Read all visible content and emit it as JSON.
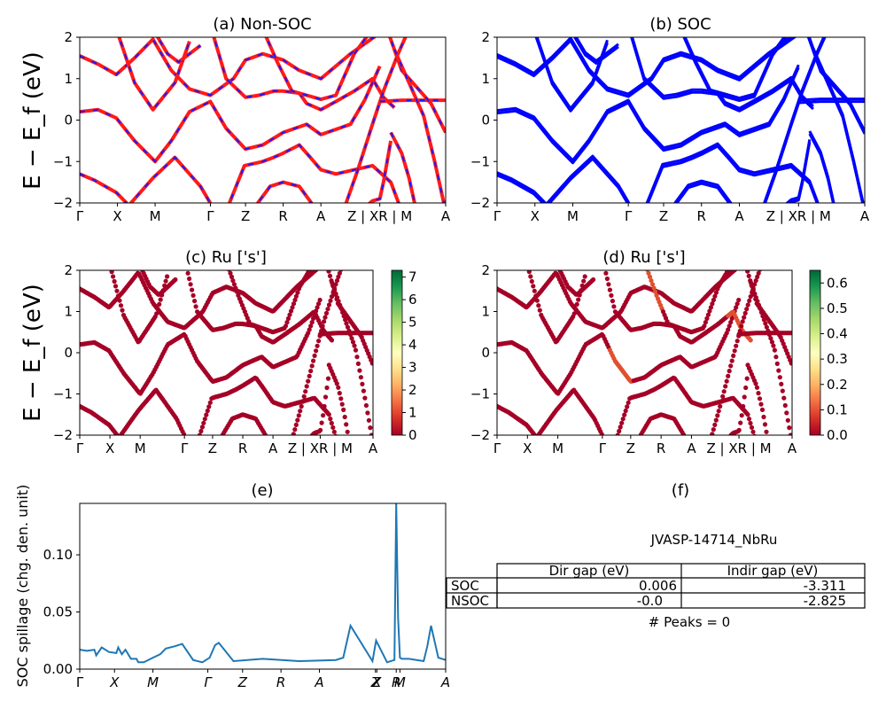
{
  "figure": {
    "ylabel_band": "E − E_f (eV)",
    "ylabel_spillage": "SOC spillage (chg. den. unit)"
  },
  "kpath_labels": [
    "Γ",
    "X",
    "M",
    "Γ",
    "Z",
    "R",
    "A",
    "Z | XR | M",
    "A"
  ],
  "kpath_labels_cd": [
    "Γ",
    "X",
    "M",
    "Γ",
    "Z",
    "R",
    "A",
    "Z | XR | M",
    "A"
  ],
  "kpath_labels_e": [
    "Γ",
    "X",
    "M",
    "Γ",
    "Z",
    "R",
    "A",
    "Z",
    "X",
    "R",
    "M",
    "A"
  ],
  "colors": {
    "nonsoc_red": "#ff1a1a",
    "nonsoc_blue": "#1a1aff",
    "soc_blue": "#0000ff",
    "spill_line": "#1f77b4"
  },
  "chart_data": [
    {
      "type": "line",
      "title": "(a) Non-SOC",
      "ylabel": "E − E_f (eV)",
      "ylim": [
        -2,
        2
      ],
      "yticks": [
        "2",
        "1",
        "0",
        "−1",
        "−2"
      ],
      "note": "bands: red solid with blue dashed overlay"
    },
    {
      "type": "line",
      "title": "(b) SOC",
      "ylim": [
        -2,
        2
      ],
      "yticks": [
        "2",
        "1",
        "0",
        "−1",
        "−2"
      ]
    },
    {
      "type": "scatter",
      "title": "(c)  Ru ['s']",
      "ylabel": "E − E_f (eV)",
      "ylim": [
        -2,
        2
      ],
      "yticks": [
        "2",
        "1",
        "0",
        "−1",
        "−2"
      ],
      "colorbar": {
        "min": 0,
        "max": 7.3,
        "ticks": [
          "7",
          "6",
          "5",
          "4",
          "3",
          "2",
          "1",
          "0"
        ],
        "colormap": "RdYlGn"
      }
    },
    {
      "type": "scatter",
      "title": "(d) Ru ['s']",
      "ylim": [
        -2,
        2
      ],
      "yticks": [
        "2",
        "1",
        "0",
        "−1",
        "−2"
      ],
      "colorbar": {
        "min": 0,
        "max": 0.65,
        "ticks": [
          "0.6",
          "0.5",
          "0.4",
          "0.3",
          "0.2",
          "0.1",
          "0.0"
        ],
        "colormap": "RdYlGn"
      }
    },
    {
      "type": "line",
      "title": "(e)",
      "ylabel": "SOC spillage (chg. den. unit)",
      "ylim": [
        0,
        0.145
      ],
      "yticks": [
        "0.10",
        "0.05",
        "0.00"
      ],
      "x": [
        0,
        0.02,
        0.04,
        0.045,
        0.06,
        0.08,
        0.1,
        0.105,
        0.115,
        0.125,
        0.14,
        0.155,
        0.16,
        0.175,
        0.2,
        0.22,
        0.235,
        0.26,
        0.28,
        0.31,
        0.335,
        0.355,
        0.37,
        0.38,
        0.42,
        0.5,
        0.6,
        0.7,
        0.72,
        0.74,
        0.8,
        0.8,
        0.81,
        0.84,
        0.86,
        0.865,
        0.87,
        0.875,
        0.88,
        0.9,
        0.94,
        0.95,
        0.96,
        0.98,
        1.0
      ],
      "y": [
        0.017,
        0.016,
        0.017,
        0.012,
        0.019,
        0.015,
        0.014,
        0.019,
        0.013,
        0.017,
        0.009,
        0.009,
        0.006,
        0.006,
        0.01,
        0.013,
        0.018,
        0.02,
        0.022,
        0.008,
        0.006,
        0.01,
        0.021,
        0.023,
        0.007,
        0.009,
        0.007,
        0.008,
        0.01,
        0.038,
        0.007,
        0.007,
        0.025,
        0.006,
        0.008,
        0.145,
        0.045,
        0.01,
        0.009,
        0.009,
        0.007,
        0.02,
        0.038,
        0.01,
        0.008
      ]
    },
    {
      "type": "table",
      "title": "(f)",
      "caption": "JVASP-14714_NbRu",
      "columns": [
        "Dir gap (eV)",
        "Indir gap (eV)"
      ],
      "rows": [
        {
          "label": "SOC",
          "values": [
            "0.006",
            "-3.311"
          ]
        },
        {
          "label": "NSOC",
          "values": [
            "-0.0",
            "-2.825"
          ]
        }
      ],
      "footer": "# Peaks = 0"
    }
  ]
}
